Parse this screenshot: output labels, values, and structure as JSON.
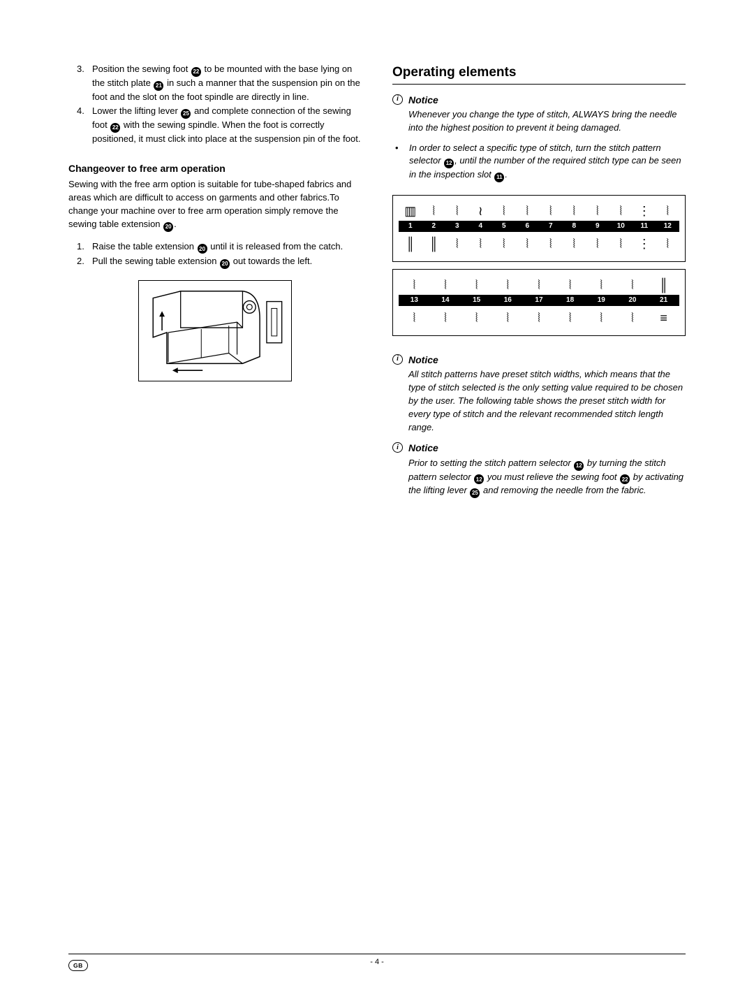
{
  "left": {
    "steps_a": [
      {
        "num": "3.",
        "text_parts": [
          "Position the sewing foot ",
          {
            "ref": "22"
          },
          " to be mounted with the base lying on the stitch plate ",
          {
            "ref": "21"
          },
          " in such a manner that the suspension pin on the foot and the slot on the foot spindle are directly in line."
        ]
      },
      {
        "num": "4.",
        "text_parts": [
          "Lower the lifting lever ",
          {
            "ref": "25"
          },
          " and complete connection of the sewing foot ",
          {
            "ref": "22"
          },
          " with the sewing spindle. When the foot is correctly positioned, it must click into place at the suspension pin of the foot."
        ]
      }
    ],
    "sub_heading": "Changeover to free arm operation",
    "para_parts": [
      "Sewing with the free arm option is suitable for tube-shaped fabrics and areas which are difficult to access on garments and other fabrics.",
      "To change your machine over to free arm operation simply remove the sewing table extension ",
      {
        "ref": "20"
      },
      "."
    ],
    "steps_b": [
      {
        "num": "1.",
        "text_parts": [
          "Raise the table extension ",
          {
            "ref": "20"
          },
          " until it is released from the catch."
        ]
      },
      {
        "num": "2.",
        "text_parts": [
          "Pull the sewing table extension ",
          {
            "ref": "20"
          },
          " out towards the left."
        ]
      }
    ]
  },
  "right": {
    "h2": "Operating elements",
    "notice_label": "Notice",
    "notice1_parts": [
      "Whenever you change the type of stitch, ALWAYS bring the needle into the highest position to prevent it being damaged."
    ],
    "bullet_parts": [
      "In order to select a specific type of stitch, turn the stitch pattern selector ",
      {
        "ref": "12"
      },
      ", until the number of the required stitch type can be seen in the inspection slot ",
      {
        "ref": "11"
      },
      "."
    ],
    "stitch_block1": {
      "top_glyphs": [
        "▥",
        "⦚",
        "⦚",
        "≀",
        "⦚",
        "⦚",
        "⦚",
        "⦚",
        "⦚",
        "⦚",
        "⋮",
        "⦚"
      ],
      "numbers": [
        "1",
        "2",
        "3",
        "4",
        "5",
        "6",
        "7",
        "8",
        "9",
        "10",
        "11",
        "12"
      ],
      "bottom_glyphs": [
        "║",
        "║",
        "⦚",
        "⦚",
        "⦚",
        "⦚",
        "⦚",
        "⦚",
        "⦚",
        "⦚",
        "⋮",
        "⦚"
      ]
    },
    "stitch_block2": {
      "top_glyphs": [
        "⦚",
        "⦚",
        "⦚",
        "⦚",
        "⦚",
        "⦚",
        "⦚",
        "⦚",
        "║"
      ],
      "numbers": [
        "13",
        "14",
        "15",
        "16",
        "17",
        "18",
        "19",
        "20",
        "21"
      ],
      "bottom_glyphs": [
        "⦚",
        "⦚",
        "⦚",
        "⦚",
        "⦚",
        "⦚",
        "⦚",
        "⦚",
        "≡"
      ]
    },
    "notice2_parts": [
      "All stitch patterns have preset stitch widths, which means that the type of stitch selected is the only setting value required to be chosen by the user. The following table shows the preset stitch width for every type of stitch and the relevant recommended stitch length range."
    ],
    "notice3_parts": [
      "Prior to setting the stitch pattern selector ",
      {
        "ref": "12"
      },
      " by turning the stitch pattern selector ",
      {
        "ref": "12"
      },
      " you must relieve the sewing foot ",
      {
        "ref": "22"
      },
      " by activating the lifting lever ",
      {
        "ref": "25"
      },
      " and removing the needle from the fabric."
    ]
  },
  "footer": {
    "page": "- 4 -",
    "lang": "GB"
  }
}
